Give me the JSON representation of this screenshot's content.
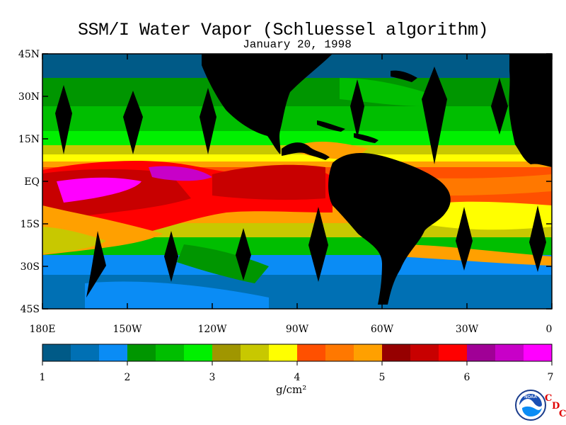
{
  "title": "SSM/I Water Vapor (Schluessel algorithm)",
  "subtitle": "January 20, 1998",
  "lat_labels": [
    "45N",
    "30N",
    "15N",
    "EQ",
    "15S",
    "30S",
    "45S"
  ],
  "lon_labels": [
    "180E",
    "150W",
    "120W",
    "90W",
    "60W",
    "30W",
    "0"
  ],
  "colorbar": {
    "ticks": [
      "1",
      "2",
      "3",
      "4",
      "5",
      "6",
      "7"
    ],
    "unit_label": "g/cm²",
    "colors": [
      "#005a87",
      "#0070b4",
      "#0a8cf5",
      "#009600",
      "#00be00",
      "#00f000",
      "#a09600",
      "#c8c800",
      "#ffff00",
      "#ff5000",
      "#ff7800",
      "#ffa000",
      "#960000",
      "#c80000",
      "#ff0000",
      "#a00096",
      "#c800c8",
      "#ff00ff"
    ]
  },
  "logo": {
    "icon": "noaa-logo-icon",
    "text": "NOAA"
  },
  "org_letters": [
    "C",
    "D",
    "C"
  ]
}
